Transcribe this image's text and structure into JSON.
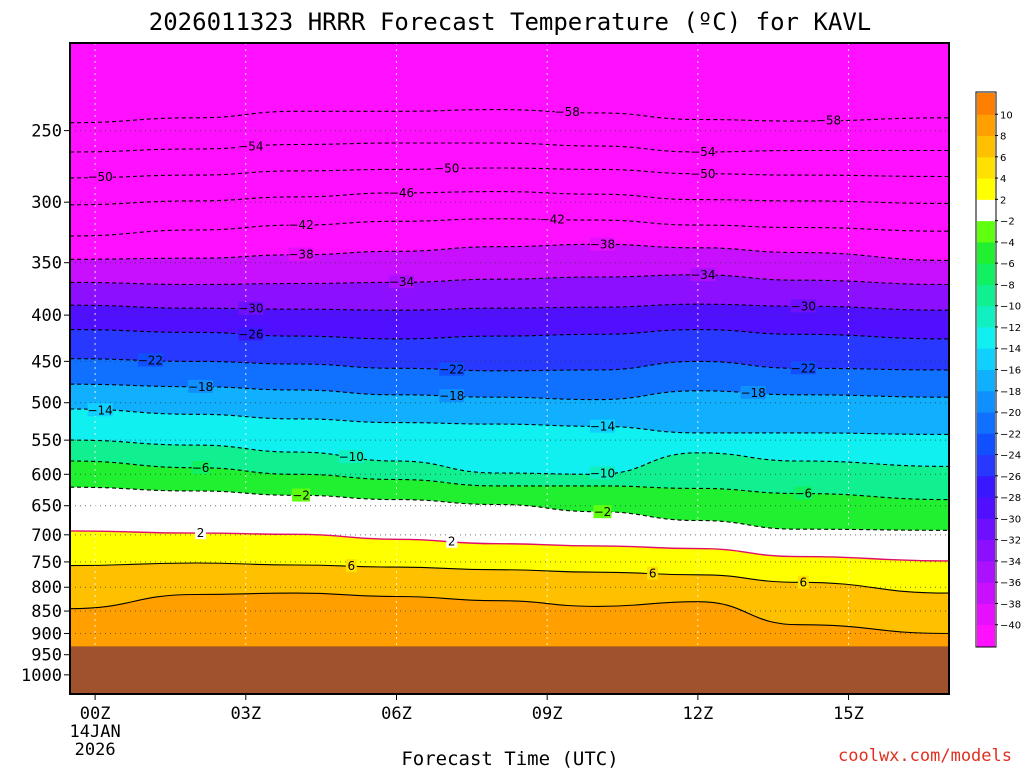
{
  "chart_data": {
    "type": "heatmap",
    "title": "2026011323 HRRR Forecast Temperature (ºC) for KAVL",
    "xlabel": "Forecast Time (UTC)",
    "ylabel": "",
    "credit": "coolwx.com/models",
    "credit_color": "#e03020",
    "x_ticks": [
      {
        "h": 0,
        "label": "00Z",
        "sub1": "14JAN",
        "sub2": "2026"
      },
      {
        "h": 3,
        "label": "03Z"
      },
      {
        "h": 6,
        "label": "06Z"
      },
      {
        "h": 9,
        "label": "09Z"
      },
      {
        "h": 12,
        "label": "12Z"
      },
      {
        "h": 15,
        "label": "15Z"
      }
    ],
    "xlim": [
      -0.5,
      17
    ],
    "y_ticks": [
      250,
      300,
      350,
      400,
      450,
      500,
      550,
      600,
      650,
      700,
      750,
      800,
      850,
      900,
      950,
      1000
    ],
    "ylim_hpa": [
      200,
      1050
    ],
    "surface_pressure_hpa": 930,
    "hours": [
      -0.5,
      2,
      4,
      6,
      8,
      10,
      12,
      14,
      17
    ],
    "isotherms": [
      {
        "t": -58,
        "p": [
          245,
          242,
          238,
          238,
          237,
          239,
          243,
          244,
          242
        ]
      },
      {
        "t": -54,
        "p": [
          264,
          262,
          259,
          258,
          258,
          260,
          264,
          263,
          263
        ]
      },
      {
        "t": -50,
        "p": [
          282,
          280,
          277,
          276,
          275,
          276,
          279,
          280,
          281
        ]
      },
      {
        "t": -46,
        "p": [
          302,
          299,
          296,
          293,
          292,
          294,
          298,
          299,
          301
        ]
      },
      {
        "t": -42,
        "p": [
          327,
          322,
          318,
          315,
          313,
          314,
          318,
          320,
          323
        ]
      },
      {
        "t": -38,
        "p": [
          347,
          346,
          343,
          340,
          336,
          334,
          337,
          341,
          348
        ]
      },
      {
        "t": -34,
        "p": [
          368,
          370,
          369,
          368,
          365,
          363,
          361,
          366,
          370
        ]
      },
      {
        "t": -30,
        "p": [
          390,
          393,
          394,
          395,
          393,
          392,
          389,
          391,
          395
        ]
      },
      {
        "t": -26,
        "p": [
          415,
          418,
          422,
          425,
          422,
          420,
          415,
          420,
          425
        ]
      },
      {
        "t": -22,
        "p": [
          447,
          450,
          453,
          458,
          461,
          460,
          450,
          458,
          460
        ]
      },
      {
        "t": -18,
        "p": [
          477,
          480,
          484,
          490,
          493,
          496,
          485,
          490,
          493
        ]
      },
      {
        "t": -14,
        "p": [
          508,
          515,
          521,
          526,
          528,
          531,
          540,
          540,
          542
        ]
      },
      {
        "t": -10,
        "p": [
          550,
          557,
          567,
          580,
          598,
          600,
          568,
          580,
          588
        ]
      },
      {
        "t": -6,
        "p": [
          580,
          590,
          600,
          608,
          618,
          618,
          622,
          630,
          640
        ]
      },
      {
        "t": -2,
        "p": [
          620,
          626,
          633,
          640,
          648,
          660,
          675,
          690,
          692
        ]
      },
      {
        "t": 2,
        "p": [
          693,
          697,
          699,
          708,
          716,
          720,
          725,
          740,
          748
        ]
      },
      {
        "t": 6,
        "p": [
          757,
          752,
          756,
          760,
          765,
          770,
          775,
          790,
          812
        ]
      },
      {
        "t": 8,
        "p": [
          845,
          815,
          812,
          819,
          828,
          840,
          830,
          880,
          900
        ]
      }
    ],
    "contour_labels": [
      {
        "t": -58,
        "h": 9.4
      },
      {
        "t": -58,
        "h": 14.6
      },
      {
        "t": -54,
        "h": 3.1
      },
      {
        "t": -54,
        "h": 12.1
      },
      {
        "t": -50,
        "h": 0.1
      },
      {
        "t": -50,
        "h": 7.0
      },
      {
        "t": -50,
        "h": 12.1
      },
      {
        "t": -46,
        "h": 6.1
      },
      {
        "t": -42,
        "h": 4.1
      },
      {
        "t": -42,
        "h": 9.1
      },
      {
        "t": -38,
        "h": 4.1
      },
      {
        "t": -38,
        "h": 10.1
      },
      {
        "t": -34,
        "h": 6.1
      },
      {
        "t": -34,
        "h": 12.1
      },
      {
        "t": -30,
        "h": 3.1
      },
      {
        "t": -30,
        "h": 14.1
      },
      {
        "t": -26,
        "h": 3.1
      },
      {
        "t": -22,
        "h": 1.1
      },
      {
        "t": -22,
        "h": 7.1
      },
      {
        "t": -22,
        "h": 14.1
      },
      {
        "t": -18,
        "h": 2.1
      },
      {
        "t": -18,
        "h": 7.1
      },
      {
        "t": -18,
        "h": 13.1
      },
      {
        "t": -14,
        "h": 0.1
      },
      {
        "t": -14,
        "h": 10.1
      },
      {
        "t": -10,
        "h": 5.1
      },
      {
        "t": -10,
        "h": 10.1
      },
      {
        "t": -6,
        "h": 2.1
      },
      {
        "t": -6,
        "h": 14.1
      },
      {
        "t": -2,
        "h": 4.1
      },
      {
        "t": -2,
        "h": 10.1
      },
      {
        "t": 2,
        "h": 2.1
      },
      {
        "t": 2,
        "h": 7.1
      },
      {
        "t": 6,
        "h": 5.1
      },
      {
        "t": 6,
        "h": 11.1
      },
      {
        "t": 6,
        "h": 14.1
      }
    ],
    "colorbar": {
      "levels": [
        -40,
        -38,
        -36,
        -34,
        -32,
        -30,
        -28,
        -26,
        -24,
        -22,
        -20,
        -18,
        -16,
        -14,
        -12,
        -10,
        -8,
        -6,
        -4,
        -2,
        2,
        4,
        6,
        8,
        10
      ],
      "colors": [
        "#ff10ff",
        "#e610ff",
        "#c810ff",
        "#ab10ff",
        "#8c10ff",
        "#6e10ff",
        "#5010ff",
        "#3a18ff",
        "#2838ff",
        "#1050ff",
        "#1070ff",
        "#1090ff",
        "#10b0ff",
        "#10d0ff",
        "#10f0f0",
        "#10f0c0",
        "#10f090",
        "#10f060",
        "#20f030",
        "#60ff10",
        "#ffffff",
        "#ffff00",
        "#ffe000",
        "#ffc000",
        "#ffa000",
        "#ff8000"
      ]
    },
    "surface_color": "#a0522d"
  }
}
